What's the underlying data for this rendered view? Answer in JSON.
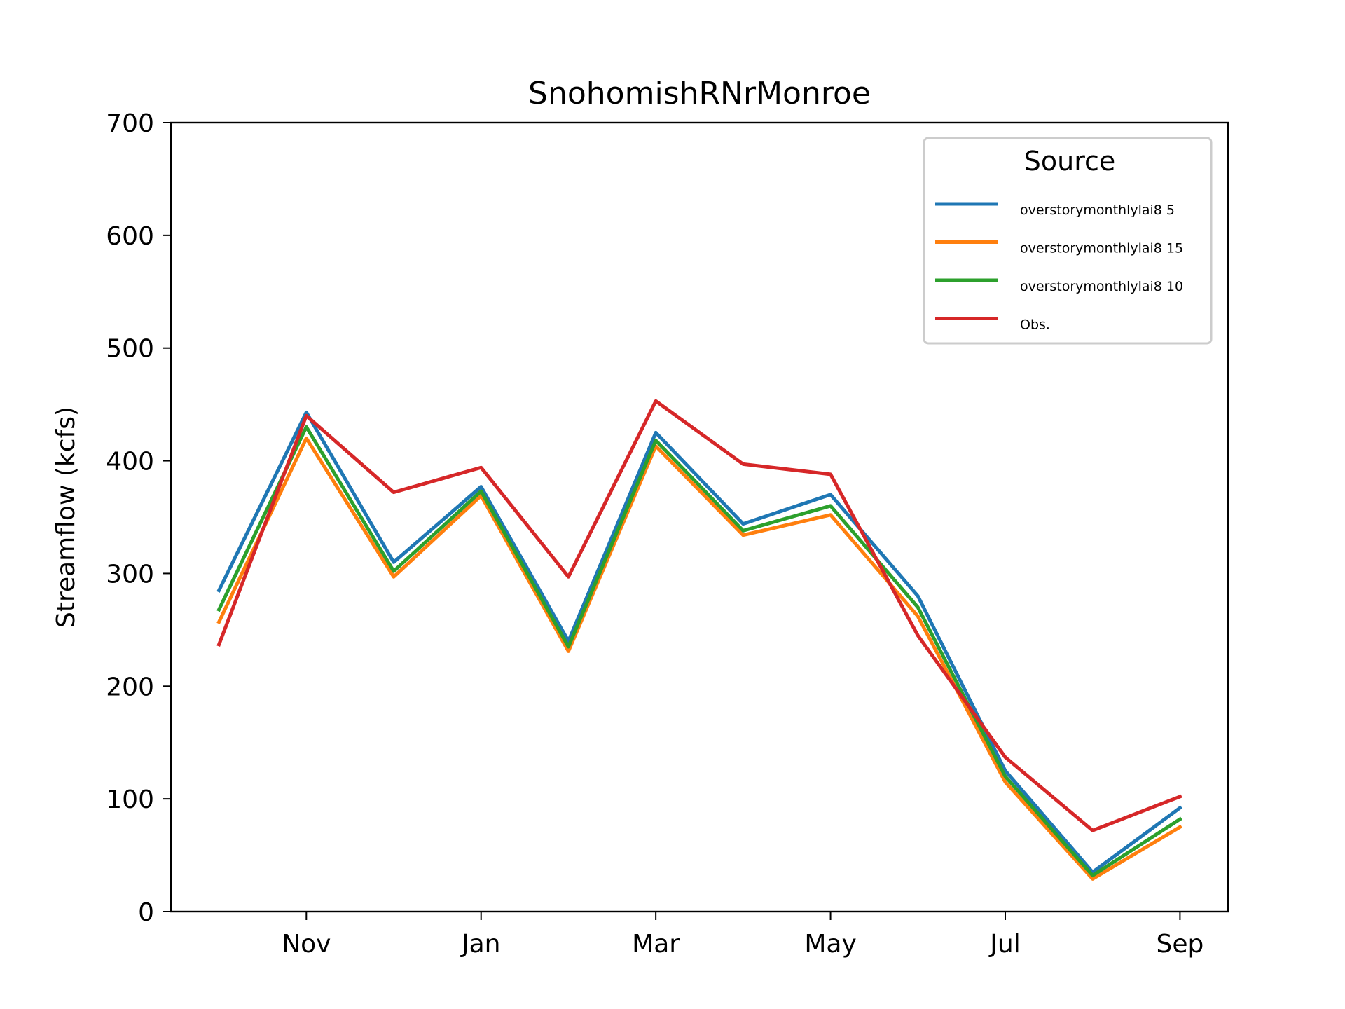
{
  "chart_data": {
    "type": "line",
    "title": "SnohomishRNrMonroe",
    "xlabel": "",
    "ylabel": "Streamflow (kcfs)",
    "ylim": [
      0,
      700
    ],
    "yticks": [
      0,
      100,
      200,
      300,
      400,
      500,
      600,
      700
    ],
    "x": [
      0,
      1,
      2,
      3,
      4,
      5,
      6,
      7,
      8,
      9,
      10,
      11
    ],
    "xlim": [
      -0.55,
      11.55
    ],
    "xticks": [
      {
        "pos": 1,
        "label": "Nov"
      },
      {
        "pos": 3,
        "label": "Jan"
      },
      {
        "pos": 5,
        "label": "Mar"
      },
      {
        "pos": 7,
        "label": "May"
      },
      {
        "pos": 9,
        "label": "Jul"
      },
      {
        "pos": 11,
        "label": "Sep"
      }
    ],
    "grid": false,
    "legend": {
      "title": "Source",
      "placement": "upper right"
    },
    "series": [
      {
        "name": "overstorymonthlylai8 5",
        "color": "#1f77b4",
        "values": [
          285,
          443,
          310,
          377,
          240,
          425,
          344,
          370,
          280,
          125,
          35,
          92
        ]
      },
      {
        "name": "overstorymonthlylai8 15",
        "color": "#ff7f0e",
        "values": [
          257,
          420,
          297,
          369,
          231,
          413,
          334,
          352,
          262,
          115,
          29,
          75
        ]
      },
      {
        "name": "overstorymonthlylai8 10",
        "color": "#2ca02c",
        "values": [
          268,
          430,
          302,
          373,
          235,
          418,
          338,
          360,
          270,
          120,
          32,
          82
        ]
      },
      {
        "name": "Obs.",
        "color": "#d62728",
        "values": [
          237,
          440,
          372,
          394,
          297,
          453,
          397,
          388,
          245,
          137,
          72,
          102
        ]
      }
    ]
  }
}
